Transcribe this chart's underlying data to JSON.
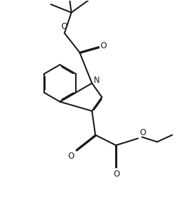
{
  "bg_color": "#ffffff",
  "line_color": "#1a1a1a",
  "line_width": 1.5,
  "dbo": 0.013,
  "figsize": [
    2.61,
    3.06
  ],
  "dpi": 100,
  "font_size": 8.5,
  "xlim": [
    0,
    2.61
  ],
  "ylim": [
    0,
    3.06
  ]
}
